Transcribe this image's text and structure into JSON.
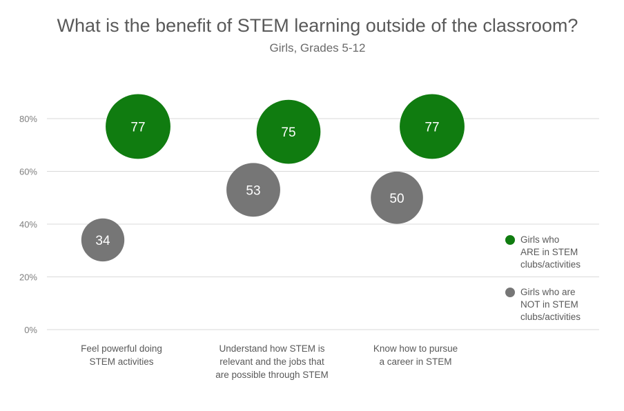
{
  "title": "What is the benefit of STEM learning outside of the classroom?",
  "subtitle": "Girls, Grades 5-12",
  "chart_data": {
    "type": "scatter",
    "categories": [
      [
        "Feel powerful doing",
        "STEM activities"
      ],
      [
        "Understand how STEM is",
        "relevant and the jobs that",
        "are possible through STEM"
      ],
      [
        "Know how to pursue",
        "a career in STEM"
      ]
    ],
    "series": [
      {
        "name": "Girls who ARE in STEM clubs/activities",
        "legend_lines": [
          "Girls who",
          "ARE in STEM",
          "clubs/activities"
        ],
        "color": "#107c10",
        "values": [
          77,
          75,
          77
        ]
      },
      {
        "name": "Girls who are NOT in STEM clubs/activities",
        "legend_lines": [
          "Girls who are",
          "NOT in STEM",
          "clubs/activities"
        ],
        "color": "#767676",
        "values": [
          34,
          53,
          50
        ]
      }
    ],
    "ylim": [
      0,
      80
    ],
    "yticks": [
      "0%",
      "20%",
      "40%",
      "60%",
      "80%"
    ],
    "grid": true,
    "legend_position": "right"
  }
}
